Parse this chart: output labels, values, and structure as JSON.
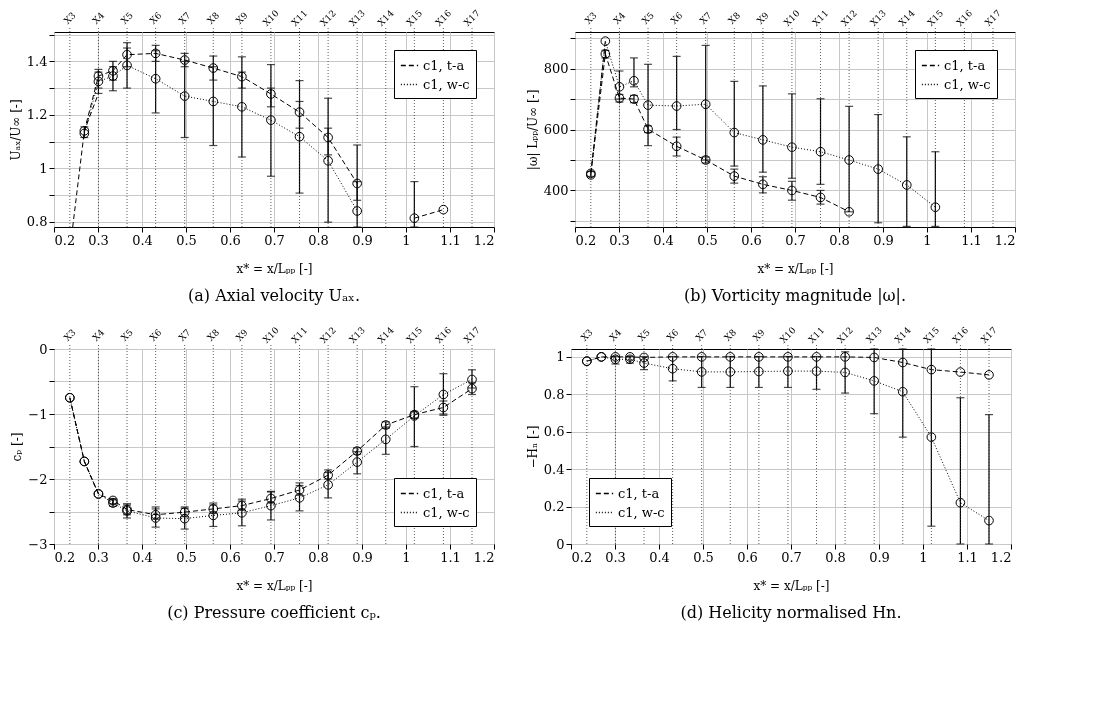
{
  "chart_data": [
    {
      "type": "line",
      "title": "(a) Axial velocity Uₐₓ.",
      "xlabel": "x* = x/Lₚₚ [-]",
      "ylabel": "Uₐₓ/U∞ [-]",
      "legend": "top right",
      "grid": true,
      "x": [
        0.269,
        0.301,
        0.334,
        0.366,
        0.431,
        0.497,
        0.562,
        0.627,
        0.693,
        0.758,
        0.823,
        0.889,
        0.954,
        1.019,
        1.085
      ],
      "xlim": [
        0.2,
        1.2
      ],
      "xticks": [
        0.2,
        0.3,
        0.4,
        0.5,
        0.6,
        0.7,
        0.8,
        0.9,
        1,
        1.1,
        1.2
      ],
      "ref_lines": [
        {
          "axis": "x",
          "value": 0.236,
          "label": "X3",
          "line_style": "dotted"
        },
        {
          "axis": "x",
          "value": 0.301,
          "label": "X4",
          "line_style": "dotted"
        },
        {
          "axis": "x",
          "value": 0.366,
          "label": "X5",
          "line_style": "dotted"
        },
        {
          "axis": "x",
          "value": 0.431,
          "label": "X6",
          "line_style": "dotted"
        },
        {
          "axis": "x",
          "value": 0.497,
          "label": "X7",
          "line_style": "dotted"
        },
        {
          "axis": "x",
          "value": 0.562,
          "label": "X8",
          "line_style": "dotted"
        },
        {
          "axis": "x",
          "value": 0.627,
          "label": "X9",
          "line_style": "dotted"
        },
        {
          "axis": "x",
          "value": 0.693,
          "label": "X10",
          "line_style": "dotted"
        },
        {
          "axis": "x",
          "value": 0.758,
          "label": "X11",
          "line_style": "dotted"
        },
        {
          "axis": "x",
          "value": 0.823,
          "label": "X12",
          "line_style": "dotted"
        },
        {
          "axis": "x",
          "value": 0.889,
          "label": "X13",
          "line_style": "dotted"
        },
        {
          "axis": "x",
          "value": 0.954,
          "label": "X14",
          "line_style": "dotted"
        },
        {
          "axis": "x",
          "value": 1.019,
          "label": "X15",
          "line_style": "dotted"
        },
        {
          "axis": "x",
          "value": 1.085,
          "label": "X16",
          "line_style": "dotted"
        },
        {
          "axis": "x",
          "value": 1.15,
          "label": "X17",
          "line_style": "dotted"
        }
      ],
      "ylim": [
        0.78,
        1.51
      ],
      "yticks": [
        0.8,
        {
          "value": 0.9,
          "label": null
        },
        1,
        {
          "value": 1.1,
          "label": null
        },
        1.2,
        {
          "value": 1.3,
          "label": null
        },
        1.4,
        {
          "value": 1.5,
          "label": null
        }
      ],
      "series": [
        {
          "name": "c1, t-a",
          "color": "#000000",
          "line_style": "dashed",
          "marker": "circle",
          "values": [
            1.14,
            1.345,
            1.365,
            1.425,
            1.43,
            1.405,
            1.375,
            1.343,
            1.278,
            1.21,
            1.115,
            0.943,
            null,
            0.813,
            0.845
          ],
          "errors": [
            [
              1.115,
              1.155
            ],
            [
              1.3,
              1.37
            ],
            [
              1.33,
              1.4
            ],
            [
              1.38,
              1.47
            ],
            [
              1.4,
              1.46
            ],
            [
              1.38,
              1.43
            ],
            [
              1.33,
              1.42
            ],
            [
              1.3,
              1.417
            ],
            [
              1.23,
              1.388
            ],
            [
              1.15,
              1.328
            ],
            [
              1.05,
              1.262
            ],
            [
              0.88,
              1.087
            ],
            null,
            [
              0.78,
              0.95
            ],
            null
          ]
        },
        {
          "name": "c1, w-c",
          "color": "#000000",
          "line_style": "dotted",
          "marker": "circle",
          "values": [
            1.13,
            1.325,
            1.345,
            1.385,
            1.335,
            1.27,
            1.25,
            1.23,
            1.18,
            1.118,
            1.028,
            0.84,
            null,
            null,
            null
          ],
          "errors": [
            null,
            [
              1.28,
              1.36
            ],
            [
              1.29,
              1.38
            ],
            [
              1.3,
              1.45
            ],
            [
              1.207,
              1.44
            ],
            [
              1.115,
              1.4
            ],
            [
              1.085,
              1.38
            ],
            [
              1.042,
              1.36
            ],
            [
              0.97,
              1.3
            ],
            [
              0.907,
              1.25
            ],
            [
              0.798,
              1.15
            ],
            [
              0.78,
              0.95
            ],
            null,
            null,
            null
          ]
        },
        {
          "color": "#000000",
          "line_style": "dashed",
          "marker": "none",
          "x": [
            0.2425,
            0.269,
            0.301
          ],
          "values": [
            0.78,
            1.14,
            1.28
          ]
        }
      ]
    },
    {
      "type": "line",
      "title": "(b) Vorticity magnitude |ω|.",
      "xlabel": "x* = x/Lₚₚ [-]",
      "ylabel": "|ω| Lₚₚ/U∞ [-]",
      "legend": "top right",
      "grid": true,
      "x": [
        0.236,
        0.269,
        0.301,
        0.334,
        0.366,
        0.431,
        0.497,
        0.562,
        0.627,
        0.693,
        0.758,
        0.823,
        0.889,
        0.954,
        1.019
      ],
      "xlim": [
        0.2,
        1.2
      ],
      "xticks": [
        0.2,
        0.3,
        0.4,
        0.5,
        0.6,
        0.7,
        0.8,
        0.9,
        1,
        1.1,
        1.2
      ],
      "ref_lines": [
        {
          "axis": "x",
          "value": 0.236,
          "label": "X3",
          "line_style": "dotted"
        },
        {
          "axis": "x",
          "value": 0.301,
          "label": "X4",
          "line_style": "dotted"
        },
        {
          "axis": "x",
          "value": 0.366,
          "label": "X5",
          "line_style": "dotted"
        },
        {
          "axis": "x",
          "value": 0.431,
          "label": "X6",
          "line_style": "dotted"
        },
        {
          "axis": "x",
          "value": 0.497,
          "label": "X7",
          "line_style": "dotted"
        },
        {
          "axis": "x",
          "value": 0.562,
          "label": "X8",
          "line_style": "dotted"
        },
        {
          "axis": "x",
          "value": 0.627,
          "label": "X9",
          "line_style": "dotted"
        },
        {
          "axis": "x",
          "value": 0.693,
          "label": "X10",
          "line_style": "dotted"
        },
        {
          "axis": "x",
          "value": 0.758,
          "label": "X11",
          "line_style": "dotted"
        },
        {
          "axis": "x",
          "value": 0.823,
          "label": "X12",
          "line_style": "dotted"
        },
        {
          "axis": "x",
          "value": 0.889,
          "label": "X13",
          "line_style": "dotted"
        },
        {
          "axis": "x",
          "value": 0.954,
          "label": "X14",
          "line_style": "dotted"
        },
        {
          "axis": "x",
          "value": 1.019,
          "label": "X15",
          "line_style": "dotted"
        },
        {
          "axis": "x",
          "value": 1.085,
          "label": "X16",
          "line_style": "dotted"
        },
        {
          "axis": "x",
          "value": 1.15,
          "label": "X17",
          "line_style": "dotted"
        }
      ],
      "ylim": [
        280,
        920
      ],
      "yticks": [
        {
          "value": 300,
          "label": null
        },
        400,
        {
          "value": 500,
          "label": null
        },
        600,
        {
          "value": 700,
          "label": null
        },
        800,
        {
          "value": 900,
          "label": null
        }
      ],
      "series": [
        {
          "name": "c1, t-a",
          "color": "#000000",
          "line_style": "dashed",
          "marker": "circle",
          "values": [
            456,
            848,
            703,
            700,
            601,
            545,
            500,
            447,
            420,
            400,
            377,
            330,
            null,
            null,
            null
          ],
          "errors": [
            [
              446,
              462
            ],
            [
              835,
              860
            ],
            [
              690,
              715
            ],
            [
              688,
              712
            ],
            [
              590,
              612
            ],
            [
              513,
              575
            ],
            [
              490,
              510
            ],
            [
              424,
              470
            ],
            [
              392,
              445
            ],
            [
              368,
              430
            ],
            [
              355,
              400
            ],
            null,
            null,
            null,
            null
          ]
        },
        {
          "name": "c1, w-c",
          "color": "#000000",
          "line_style": "dotted",
          "marker": "circle",
          "values": [
            451,
            890,
            740,
            760,
            680,
            677,
            683,
            590,
            566,
            542,
            527,
            500,
            470,
            418,
            345
          ],
          "errors": [
            null,
            null,
            [
              700,
              792
            ],
            [
              740,
              835
            ],
            [
              547,
              814
            ],
            [
              600,
              840
            ],
            [
              500,
              876
            ],
            [
              480,
              758
            ],
            [
              460,
              743
            ],
            [
              440,
              717
            ],
            [
              420,
              701
            ],
            [
              330,
              676
            ],
            [
              294,
              649
            ],
            [
              282,
              576
            ],
            [
              282,
              527
            ]
          ]
        },
        {
          "color": "#000000",
          "line_style": "dashed",
          "marker": "none",
          "x": [
            0.236,
            0.269
          ],
          "values": [
            456,
            890
          ]
        }
      ]
    },
    {
      "type": "line",
      "title": "(c) Pressure coefficient cₚ.",
      "xlabel": "x* = x/Lₚₚ [-]",
      "ylabel": "cₚ [-]",
      "legend": "bottom right",
      "grid": true,
      "x": [
        0.236,
        0.269,
        0.301,
        0.334,
        0.366,
        0.431,
        0.497,
        0.562,
        0.627,
        0.693,
        0.758,
        0.823,
        0.889,
        0.954,
        1.019,
        1.085,
        1.15
      ],
      "xlim": [
        0.2,
        1.2
      ],
      "xticks": [
        0.2,
        0.3,
        0.4,
        0.5,
        0.6,
        0.7,
        0.8,
        0.9,
        1,
        1.1,
        1.2
      ],
      "ref_lines": [
        {
          "axis": "x",
          "value": 0.236,
          "label": "X3",
          "line_style": "dotted"
        },
        {
          "axis": "x",
          "value": 0.301,
          "label": "X4",
          "line_style": "dotted"
        },
        {
          "axis": "x",
          "value": 0.366,
          "label": "X5",
          "line_style": "dotted"
        },
        {
          "axis": "x",
          "value": 0.431,
          "label": "X6",
          "line_style": "dotted"
        },
        {
          "axis": "x",
          "value": 0.497,
          "label": "X7",
          "line_style": "dotted"
        },
        {
          "axis": "x",
          "value": 0.562,
          "label": "X8",
          "line_style": "dotted"
        },
        {
          "axis": "x",
          "value": 0.627,
          "label": "X9",
          "line_style": "dotted"
        },
        {
          "axis": "x",
          "value": 0.693,
          "label": "X10",
          "line_style": "dotted"
        },
        {
          "axis": "x",
          "value": 0.758,
          "label": "X11",
          "line_style": "dotted"
        },
        {
          "axis": "x",
          "value": 0.823,
          "label": "X12",
          "line_style": "dotted"
        },
        {
          "axis": "x",
          "value": 0.889,
          "label": "X13",
          "line_style": "dotted"
        },
        {
          "axis": "x",
          "value": 0.954,
          "label": "X14",
          "line_style": "dotted"
        },
        {
          "axis": "x",
          "value": 1.019,
          "label": "X15",
          "line_style": "dotted"
        },
        {
          "axis": "x",
          "value": 1.085,
          "label": "X16",
          "line_style": "dotted"
        },
        {
          "axis": "x",
          "value": 1.15,
          "label": "X17",
          "line_style": "dotted"
        }
      ],
      "ylim": [
        -3,
        0
      ],
      "yticks": [
        {
          "value": -3,
          "label": "−3"
        },
        {
          "value": -2.5,
          "label": null
        },
        {
          "value": -2,
          "label": "−2"
        },
        {
          "value": -1.5,
          "label": null
        },
        {
          "value": -1,
          "label": "−1"
        },
        {
          "value": -0.5,
          "label": null
        },
        0
      ],
      "series": [
        {
          "name": "c1, t-a",
          "color": "#000000",
          "line_style": "dashed",
          "marker": "circle",
          "values": [
            -0.75,
            -1.73,
            -2.23,
            -2.33,
            -2.47,
            -2.55,
            -2.51,
            -2.46,
            -2.41,
            -2.3,
            -2.17,
            -1.94,
            -1.57,
            -1.17,
            -1.01,
            -0.9,
            -0.61
          ],
          "errors": [
            null,
            null,
            null,
            [
              -2.38,
              -2.3
            ],
            [
              -2.55,
              -2.38
            ],
            [
              -2.62,
              -2.43
            ],
            [
              -2.58,
              -2.43
            ],
            [
              -2.53,
              -2.37
            ],
            [
              -2.48,
              -2.31
            ],
            [
              -2.37,
              -2.19
            ],
            [
              -2.25,
              -2.06
            ],
            [
              -2.0,
              -1.86
            ],
            [
              -1.62,
              -1.52
            ],
            [
              -1.22,
              -1.12
            ],
            [
              -1.06,
              -0.96
            ],
            [
              -1.02,
              -0.8
            ],
            [
              -0.7,
              -0.52
            ]
          ]
        },
        {
          "name": "c1, w-c",
          "color": "#000000",
          "line_style": "dotted",
          "marker": "circle",
          "values": [
            -0.75,
            -1.73,
            -2.23,
            -2.37,
            -2.49,
            -2.6,
            -2.61,
            -2.56,
            -2.52,
            -2.41,
            -2.29,
            -2.09,
            -1.74,
            -1.39,
            -1.03,
            -0.7,
            -0.47
          ],
          "errors": [
            null,
            null,
            null,
            [
              -2.42,
              -2.32
            ],
            [
              -2.6,
              -2.4
            ],
            [
              -2.74,
              -2.46
            ],
            [
              -2.77,
              -2.45
            ],
            [
              -2.73,
              -2.4
            ],
            [
              -2.72,
              -2.34
            ],
            [
              -2.63,
              -2.2
            ],
            [
              -2.49,
              -2.1
            ],
            [
              -2.29,
              -1.9
            ],
            [
              -1.92,
              -1.58
            ],
            [
              -1.62,
              -1.2
            ],
            [
              -1.5,
              -0.58
            ],
            [
              -1.0,
              -0.38
            ],
            [
              -0.6,
              -0.32
            ]
          ]
        },
        {
          "color": "#000000",
          "line_style": "dashed",
          "marker": "none",
          "x": [
            0.236,
            0.269,
            0.301
          ],
          "values": [
            -0.75,
            -1.73,
            -2.23
          ]
        }
      ]
    },
    {
      "type": "line",
      "title": "(d) Helicity normalised Hn.",
      "xlabel": "x* = x/Lₚₚ [-]",
      "ylabel": "−Hₙ [-]",
      "legend": "bottom left",
      "grid": true,
      "x": [
        0.236,
        0.269,
        0.301,
        0.334,
        0.366,
        0.431,
        0.497,
        0.562,
        0.627,
        0.693,
        0.758,
        0.823,
        0.889,
        0.954,
        1.019,
        1.085,
        1.15
      ],
      "xlim": [
        0.2,
        1.2
      ],
      "xticks": [
        0.2,
        0.3,
        0.4,
        0.5,
        0.6,
        0.7,
        0.8,
        0.9,
        1,
        1.1,
        1.2
      ],
      "ref_lines": [
        {
          "axis": "x",
          "value": 0.236,
          "label": "X3",
          "line_style": "dotted"
        },
        {
          "axis": "x",
          "value": 0.301,
          "label": "X4",
          "line_style": "dotted"
        },
        {
          "axis": "x",
          "value": 0.366,
          "label": "X5",
          "line_style": "dotted"
        },
        {
          "axis": "x",
          "value": 0.431,
          "label": "X6",
          "line_style": "dotted"
        },
        {
          "axis": "x",
          "value": 0.497,
          "label": "X7",
          "line_style": "dotted"
        },
        {
          "axis": "x",
          "value": 0.562,
          "label": "X8",
          "line_style": "dotted"
        },
        {
          "axis": "x",
          "value": 0.627,
          "label": "X9",
          "line_style": "dotted"
        },
        {
          "axis": "x",
          "value": 0.693,
          "label": "X10",
          "line_style": "dotted"
        },
        {
          "axis": "x",
          "value": 0.758,
          "label": "X11",
          "line_style": "dotted"
        },
        {
          "axis": "x",
          "value": 0.823,
          "label": "X12",
          "line_style": "dotted"
        },
        {
          "axis": "x",
          "value": 0.889,
          "label": "X13",
          "line_style": "dotted"
        },
        {
          "axis": "x",
          "value": 0.954,
          "label": "X14",
          "line_style": "dotted"
        },
        {
          "axis": "x",
          "value": 1.019,
          "label": "X15",
          "line_style": "dotted"
        },
        {
          "axis": "x",
          "value": 1.085,
          "label": "X16",
          "line_style": "dotted"
        },
        {
          "axis": "x",
          "value": 1.15,
          "label": "X17",
          "line_style": "dotted"
        }
      ],
      "ylim": [
        0,
        1.04
      ],
      "yticks": [
        0,
        0.2,
        0.4,
        0.6,
        0.8,
        1
      ],
      "series": [
        {
          "name": "c1, t-a",
          "color": "#000000",
          "line_style": "dashed",
          "marker": "circle",
          "values": [
            0.975,
            0.998,
            0.998,
            0.998,
            0.995,
            0.998,
            0.998,
            0.998,
            0.998,
            0.998,
            0.998,
            0.998,
            0.995,
            0.968,
            0.93,
            0.917,
            0.902
          ]
        },
        {
          "name": "c1, w-c",
          "color": "#000000",
          "line_style": "dotted",
          "marker": "circle",
          "values": [
            0.975,
            0.998,
            0.985,
            0.985,
            0.965,
            0.935,
            0.918,
            0.918,
            0.92,
            0.922,
            0.922,
            0.915,
            0.87,
            0.812,
            0.57,
            0.22,
            0.125
          ],
          "errors": [
            null,
            null,
            [
              0.96,
              1.0
            ],
            [
              0.965,
              1.0
            ],
            [
              0.93,
              1.0
            ],
            [
              0.87,
              1.0
            ],
            [
              0.835,
              1.0
            ],
            [
              0.835,
              1.0
            ],
            [
              0.835,
              1.0
            ],
            [
              0.835,
              1.0
            ],
            [
              0.825,
              1.0
            ],
            [
              0.805,
              1.025
            ],
            [
              0.695,
              1.04
            ],
            [
              0.57,
              1.04
            ],
            [
              0.095,
              1.04
            ],
            [
              0,
              0.78
            ],
            [
              0,
              0.69
            ]
          ]
        }
      ]
    }
  ]
}
